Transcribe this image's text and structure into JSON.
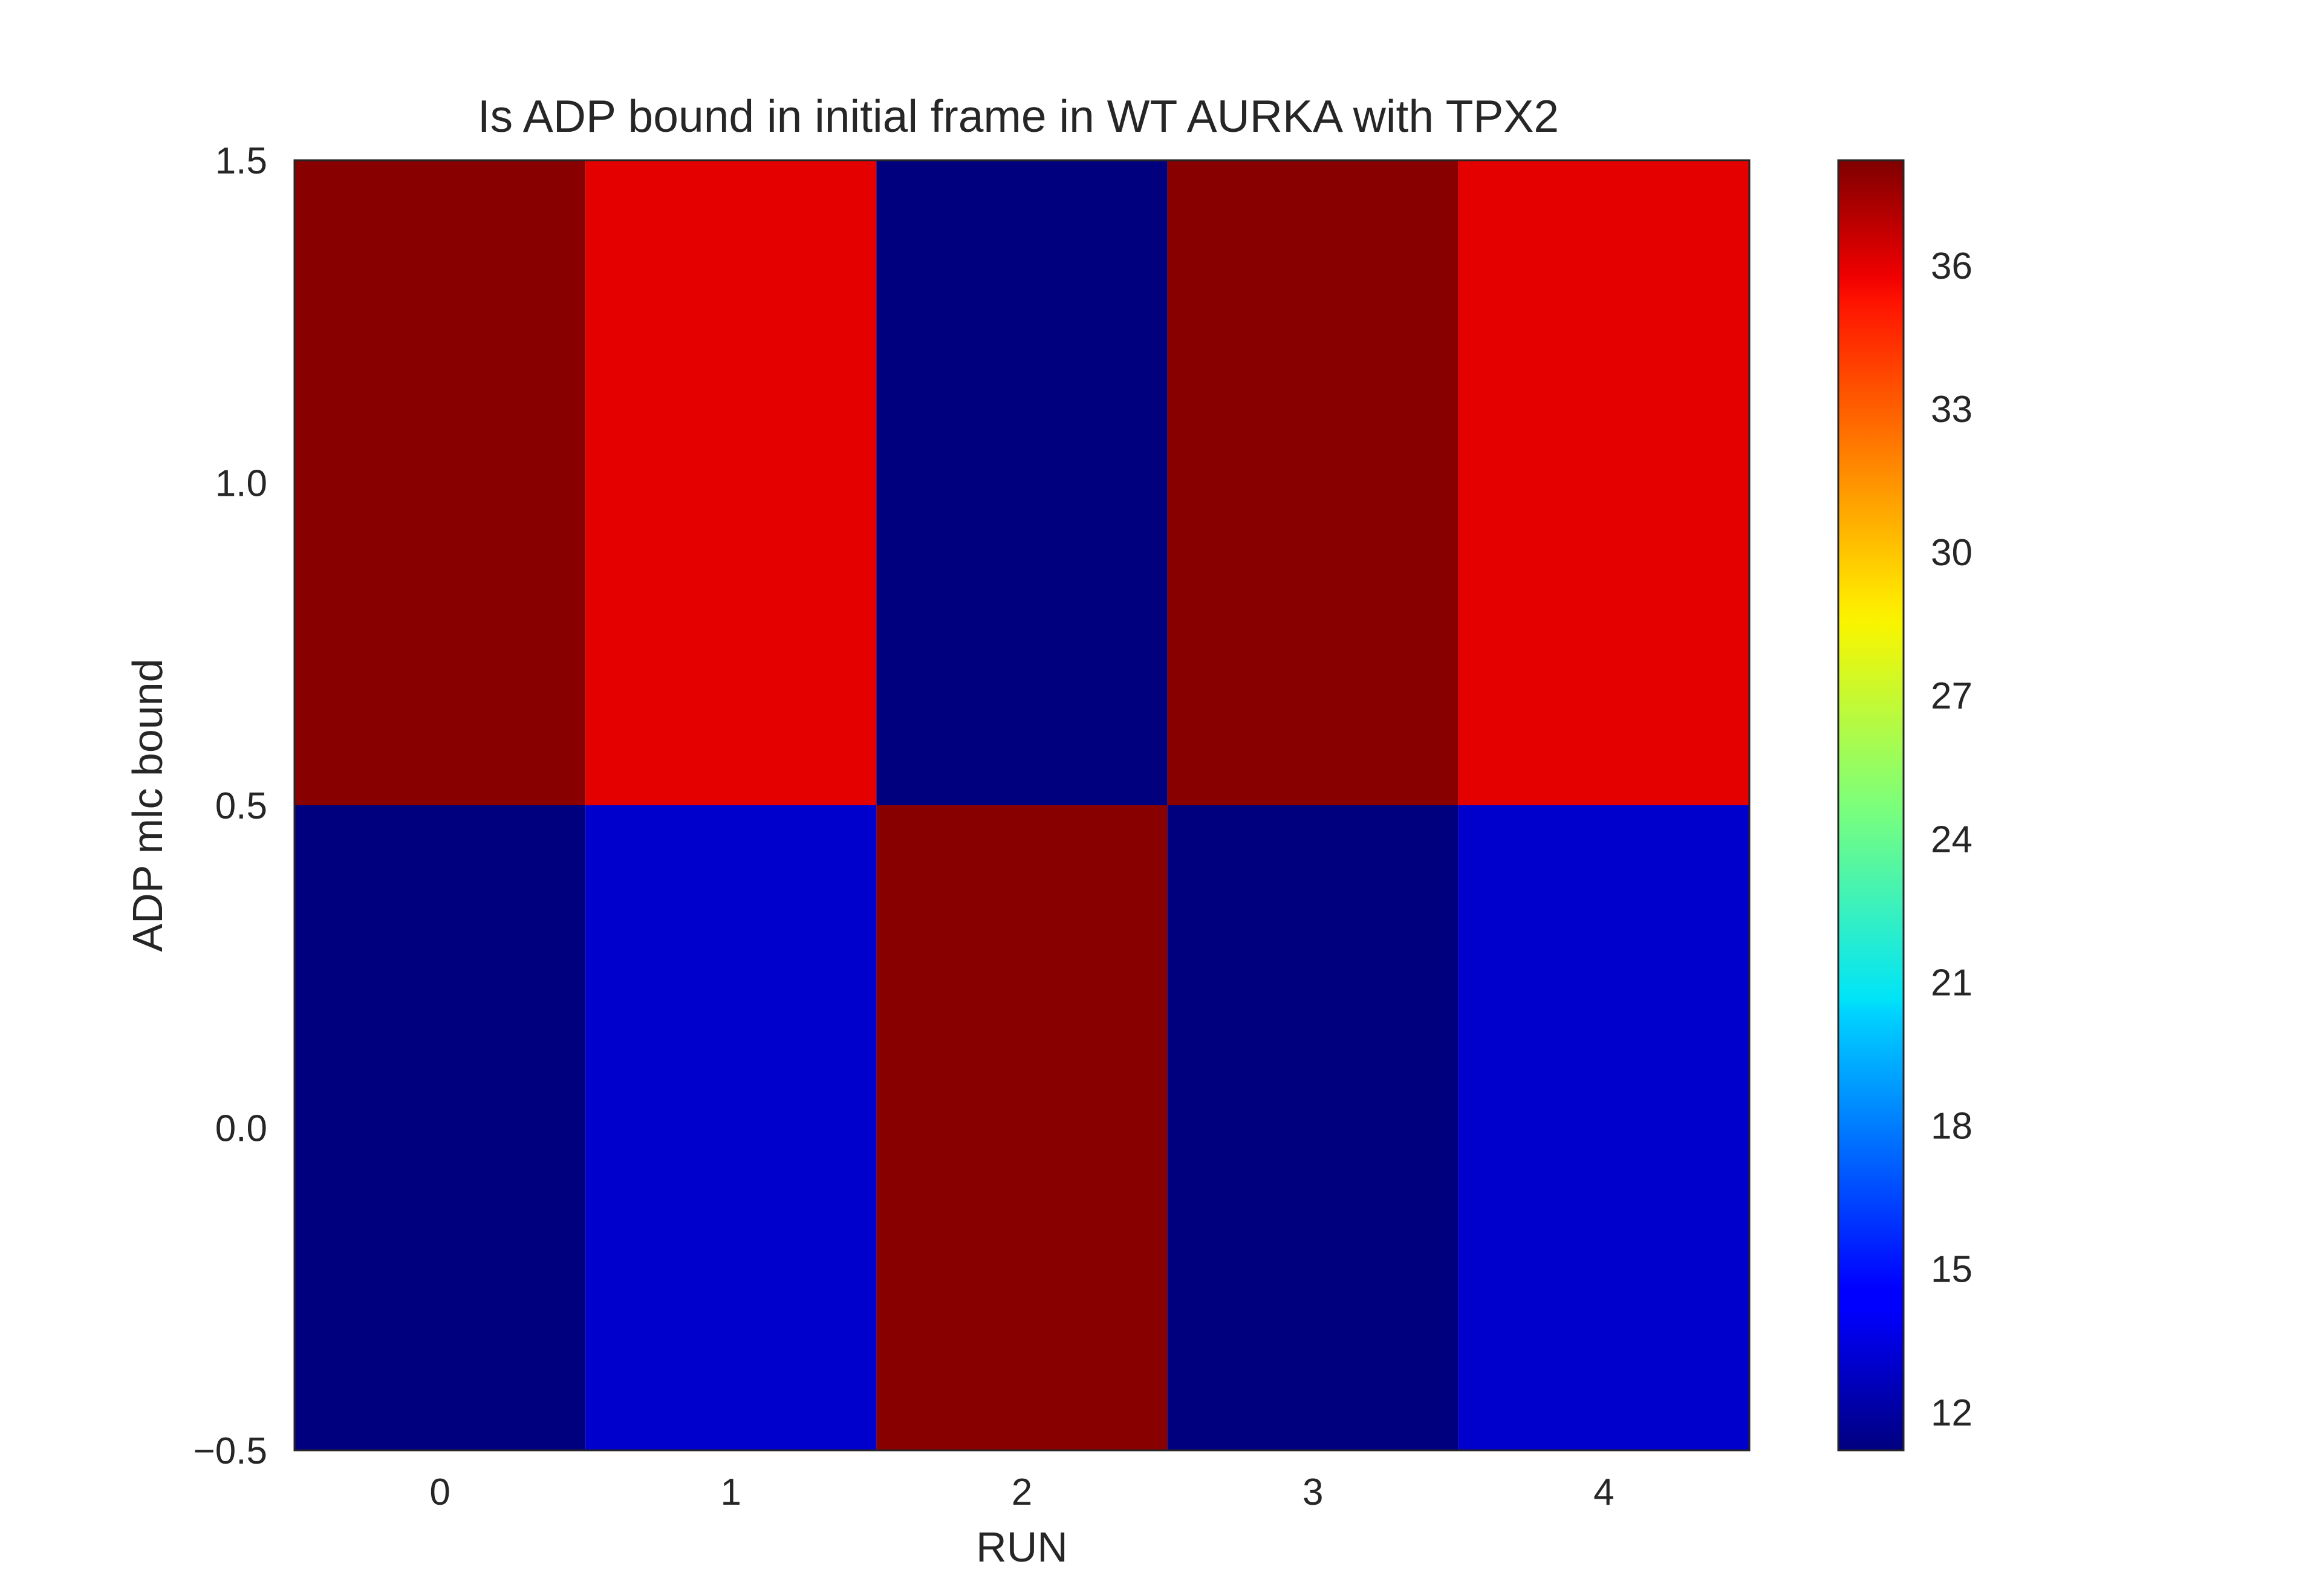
{
  "chart_data": {
    "type": "heatmap",
    "title": "Is ADP bound in initial frame in WT AURKA with TPX2",
    "xlabel": "RUN",
    "ylabel": "ADP mlc bound",
    "x_categories": [
      "0",
      "1",
      "2",
      "3",
      "4"
    ],
    "y_categories": [
      "0",
      "1"
    ],
    "xlim": [
      -0.5,
      4.5
    ],
    "ylim": [
      -0.5,
      1.5
    ],
    "y_ticks": [
      1.5,
      1.0,
      0.5,
      0.0,
      -0.5
    ],
    "y_tick_labels": [
      "1.5",
      "1.0",
      "0.5",
      "0.0",
      "−0.5"
    ],
    "values": [
      [
        11,
        13,
        38,
        11,
        13
      ],
      [
        38,
        36,
        11,
        38,
        36
      ]
    ],
    "colormap": "jet",
    "colorbar": {
      "min": 11.2,
      "max": 38.2,
      "ticks": [
        12,
        15,
        18,
        21,
        24,
        27,
        30,
        33,
        36
      ],
      "tick_labels": [
        "12",
        "15",
        "18",
        "21",
        "24",
        "27",
        "30",
        "33",
        "36"
      ]
    },
    "grid": false,
    "legend": "none"
  }
}
